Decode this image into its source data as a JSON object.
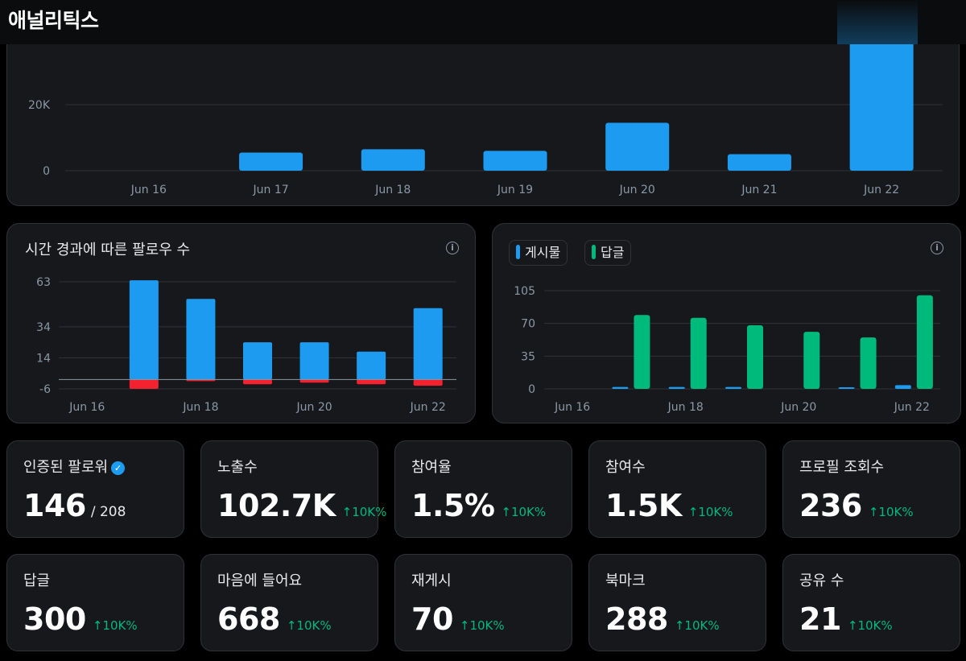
{
  "header": {
    "title": "애널리틱스"
  },
  "colors": {
    "blue": "#1d9bf0",
    "green": "#00ba7c",
    "red": "#f4212e"
  },
  "impressions_chart": {
    "chart_data": {
      "type": "bar",
      "categories": [
        "Jun 16",
        "Jun 17",
        "Jun 18",
        "Jun 19",
        "Jun 20",
        "Jun 21",
        "Jun 22"
      ],
      "values": [
        0,
        5500,
        6500,
        6000,
        14500,
        5000,
        40000
      ],
      "y_tick_labels": [
        "0",
        "20K"
      ],
      "y_ticks": [
        0,
        20000
      ],
      "ylim": [
        0,
        40000
      ],
      "grid": true
    }
  },
  "followers_chart": {
    "title": "시간 경과에 따른 팔로우 수",
    "chart_data": {
      "type": "bar",
      "categories": [
        "Jun 16",
        "Jun 17",
        "Jun 18",
        "Jun 19",
        "Jun 20",
        "Jun 21",
        "Jun 22"
      ],
      "x_tick_labels": [
        "Jun 16",
        "Jun 18",
        "Jun 20",
        "Jun 22"
      ],
      "series": [
        {
          "values": [
            0,
            64,
            52,
            24,
            24,
            18,
            46
          ]
        },
        {
          "values": [
            0,
            -6,
            -1,
            -3,
            -2,
            -3,
            -4
          ]
        }
      ],
      "y_tick_labels": [
        "63",
        "34",
        "14",
        "-6"
      ],
      "y_ticks": [
        63,
        34,
        14,
        -6
      ],
      "ylim": [
        -6,
        63
      ],
      "grid": true
    }
  },
  "posts_chart": {
    "legend": [
      {
        "label": "게시물",
        "color": "#1d9bf0"
      },
      {
        "label": "답글",
        "color": "#00ba7c"
      }
    ],
    "chart_data": {
      "type": "bar",
      "categories": [
        "Jun 16",
        "Jun 17",
        "Jun 18",
        "Jun 19",
        "Jun 20",
        "Jun 21",
        "Jun 22"
      ],
      "x_tick_labels": [
        "Jun 16",
        "Jun 18",
        "Jun 20",
        "Jun 22"
      ],
      "series": [
        {
          "name": "게시물",
          "values": [
            0,
            2,
            2,
            2,
            0,
            1,
            4
          ]
        },
        {
          "name": "답글",
          "values": [
            0,
            79,
            76,
            68,
            61,
            55,
            100
          ]
        }
      ],
      "y_tick_labels": [
        "0",
        "35",
        "70",
        "105"
      ],
      "y_ticks": [
        0,
        35,
        70,
        105
      ],
      "ylim": [
        0,
        105
      ],
      "grid": true
    }
  },
  "stats": [
    {
      "label": "인증된 팔로워",
      "value": "146",
      "sub": "/ 208",
      "verified": true
    },
    {
      "label": "노출수",
      "value": "102.7K",
      "delta": "↑10K%"
    },
    {
      "label": "참여율",
      "value": "1.5%",
      "delta": "↑10K%"
    },
    {
      "label": "참여수",
      "value": "1.5K",
      "delta": "↑10K%"
    },
    {
      "label": "프로필 조회수",
      "value": "236",
      "delta": "↑10K%"
    },
    {
      "label": "답글",
      "value": "300",
      "delta": "↑10K%"
    },
    {
      "label": "마음에 들어요",
      "value": "668",
      "delta": "↑10K%"
    },
    {
      "label": "재게시",
      "value": "70",
      "delta": "↑10K%"
    },
    {
      "label": "북마크",
      "value": "288",
      "delta": "↑10K%"
    },
    {
      "label": "공유 수",
      "value": "21",
      "delta": "↑10K%"
    }
  ]
}
